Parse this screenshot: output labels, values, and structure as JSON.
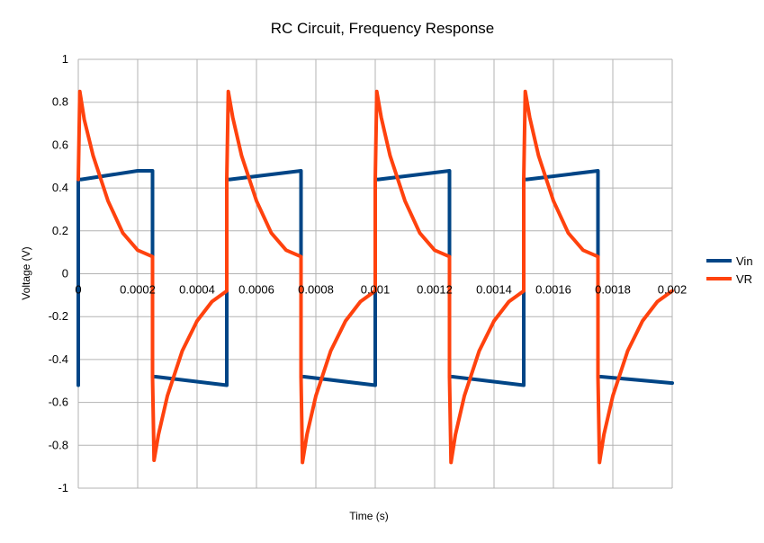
{
  "chart_data": {
    "type": "line",
    "title": "RC Circuit, Frequency Response",
    "xlabel": "Time (s)",
    "ylabel": "Voltage (V)",
    "xlim": [
      0,
      0.002
    ],
    "ylim": [
      -1,
      1
    ],
    "x_ticks": [
      0,
      0.0002,
      0.0004,
      0.0006,
      0.0008,
      0.001,
      0.0012,
      0.0014,
      0.0016,
      0.0018,
      0.002
    ],
    "x_tick_labels": [
      "0",
      "0.0002",
      "0.0004",
      "0.0006",
      "0.0008",
      "0.001",
      "0.0012",
      "0.0014",
      "0.0016",
      "0.0018",
      "0.002"
    ],
    "y_ticks": [
      1,
      0.8,
      0.6,
      0.4,
      0.2,
      0,
      -0.2,
      -0.4,
      -0.6,
      -0.8,
      -1
    ],
    "y_tick_labels": [
      "1",
      "0.8",
      "0.6",
      "0.4",
      "0.2",
      "0",
      "-0.2",
      "-0.4",
      "-0.6",
      "-0.8",
      "-1"
    ],
    "grid": true,
    "legend_position": "right",
    "series": [
      {
        "name": "Vin",
        "color": "#004586",
        "x": [
          0,
          0,
          1e-05,
          0.0002,
          0.00025,
          0.00025,
          0.00026,
          0.0005,
          0.0005,
          0.00051,
          0.00075,
          0.00075,
          0.00076,
          0.001,
          0.001,
          0.00101,
          0.00125,
          0.00125,
          0.00126,
          0.0015,
          0.0015,
          0.00151,
          0.00175,
          0.00175,
          0.00176,
          0.002
        ],
        "y": [
          -0.52,
          0.44,
          0.44,
          0.48,
          0.48,
          -0.48,
          -0.48,
          -0.52,
          0.44,
          0.44,
          0.48,
          -0.48,
          -0.48,
          -0.52,
          0.44,
          0.44,
          0.48,
          -0.48,
          -0.48,
          -0.52,
          0.44,
          0.44,
          0.48,
          -0.48,
          -0.48,
          -0.51
        ]
      },
      {
        "name": "VR",
        "color": "#ff420e",
        "x": [
          0,
          5e-06,
          2e-05,
          5e-05,
          0.0001,
          0.00015,
          0.0002,
          0.00025,
          0.00025,
          0.000255,
          0.00027,
          0.0003,
          0.00035,
          0.0004,
          0.00045,
          0.0005,
          0.0005,
          0.000505,
          0.00052,
          0.00055,
          0.0006,
          0.00065,
          0.0007,
          0.00075,
          0.00075,
          0.000755,
          0.00077,
          0.0008,
          0.00085,
          0.0009,
          0.00095,
          0.001,
          0.001,
          0.001005,
          0.00102,
          0.00105,
          0.0011,
          0.00115,
          0.0012,
          0.00125,
          0.00125,
          0.001255,
          0.00127,
          0.0013,
          0.00135,
          0.0014,
          0.00145,
          0.0015,
          0.0015,
          0.001505,
          0.00152,
          0.00155,
          0.0016,
          0.00165,
          0.0017,
          0.00175,
          0.00175,
          0.001755,
          0.00177,
          0.0018,
          0.00185,
          0.0019,
          0.00195,
          0.002
        ],
        "y": [
          0.44,
          0.85,
          0.72,
          0.55,
          0.34,
          0.19,
          0.11,
          0.08,
          -0.48,
          -0.87,
          -0.75,
          -0.57,
          -0.36,
          -0.22,
          -0.13,
          -0.08,
          0.44,
          0.85,
          0.73,
          0.55,
          0.34,
          0.19,
          0.11,
          0.08,
          -0.48,
          -0.88,
          -0.75,
          -0.57,
          -0.36,
          -0.22,
          -0.13,
          -0.08,
          0.44,
          0.85,
          0.73,
          0.55,
          0.34,
          0.19,
          0.11,
          0.08,
          -0.48,
          -0.88,
          -0.75,
          -0.57,
          -0.36,
          -0.22,
          -0.13,
          -0.08,
          0.44,
          0.85,
          0.73,
          0.55,
          0.34,
          0.19,
          0.11,
          0.08,
          -0.48,
          -0.88,
          -0.75,
          -0.57,
          -0.36,
          -0.22,
          -0.13,
          -0.08
        ]
      }
    ]
  }
}
